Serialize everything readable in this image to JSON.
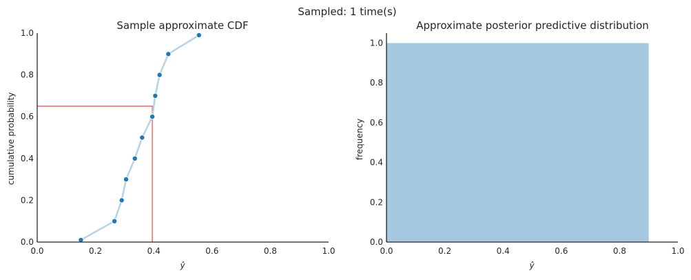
{
  "figure": {
    "suptitle": "Sampled: 1 time(s)"
  },
  "chart_data": [
    {
      "type": "line",
      "title": "Sample approximate CDF",
      "xlabel": "ŷ",
      "ylabel": "cumulative probability",
      "xlim": [
        0,
        1
      ],
      "ylim": [
        0,
        1
      ],
      "xticks": [
        "0.0",
        "0.2",
        "0.4",
        "0.6",
        "0.8",
        "1.0"
      ],
      "yticks": [
        "0.0",
        "0.2",
        "0.4",
        "0.6",
        "0.8",
        "1.0"
      ],
      "grid": false,
      "series": [
        {
          "x": [
            0.15,
            0.265,
            0.29,
            0.305,
            0.335,
            0.36,
            0.395,
            0.405,
            0.42,
            0.45,
            0.555
          ],
          "y": [
            0.01,
            0.1,
            0.2,
            0.3,
            0.4,
            0.5,
            0.6,
            0.7,
            0.8,
            0.9,
            0.99
          ],
          "line_color": "#b3d3e8",
          "marker_color": "#1f77b4"
        }
      ],
      "reference_point": {
        "x": 0.395,
        "y": 0.65,
        "color": "#e86c6c"
      }
    },
    {
      "type": "bar",
      "title": "Approximate posterior predictive distribution",
      "xlabel": "ŷ",
      "ylabel": "frequency",
      "xlim": [
        0,
        1
      ],
      "ylim": [
        0,
        1.05
      ],
      "xticks": [
        "0.0",
        "0.2",
        "0.4",
        "0.6",
        "0.8",
        "1.0"
      ],
      "yticks": [
        "0.0",
        "0.2",
        "0.4",
        "0.6",
        "0.8",
        "1.0"
      ],
      "grid": false,
      "bars": [
        {
          "x0": 0.0,
          "x1": 0.9,
          "value": 1.0
        }
      ],
      "bar_color": "#a6c8e0"
    }
  ]
}
